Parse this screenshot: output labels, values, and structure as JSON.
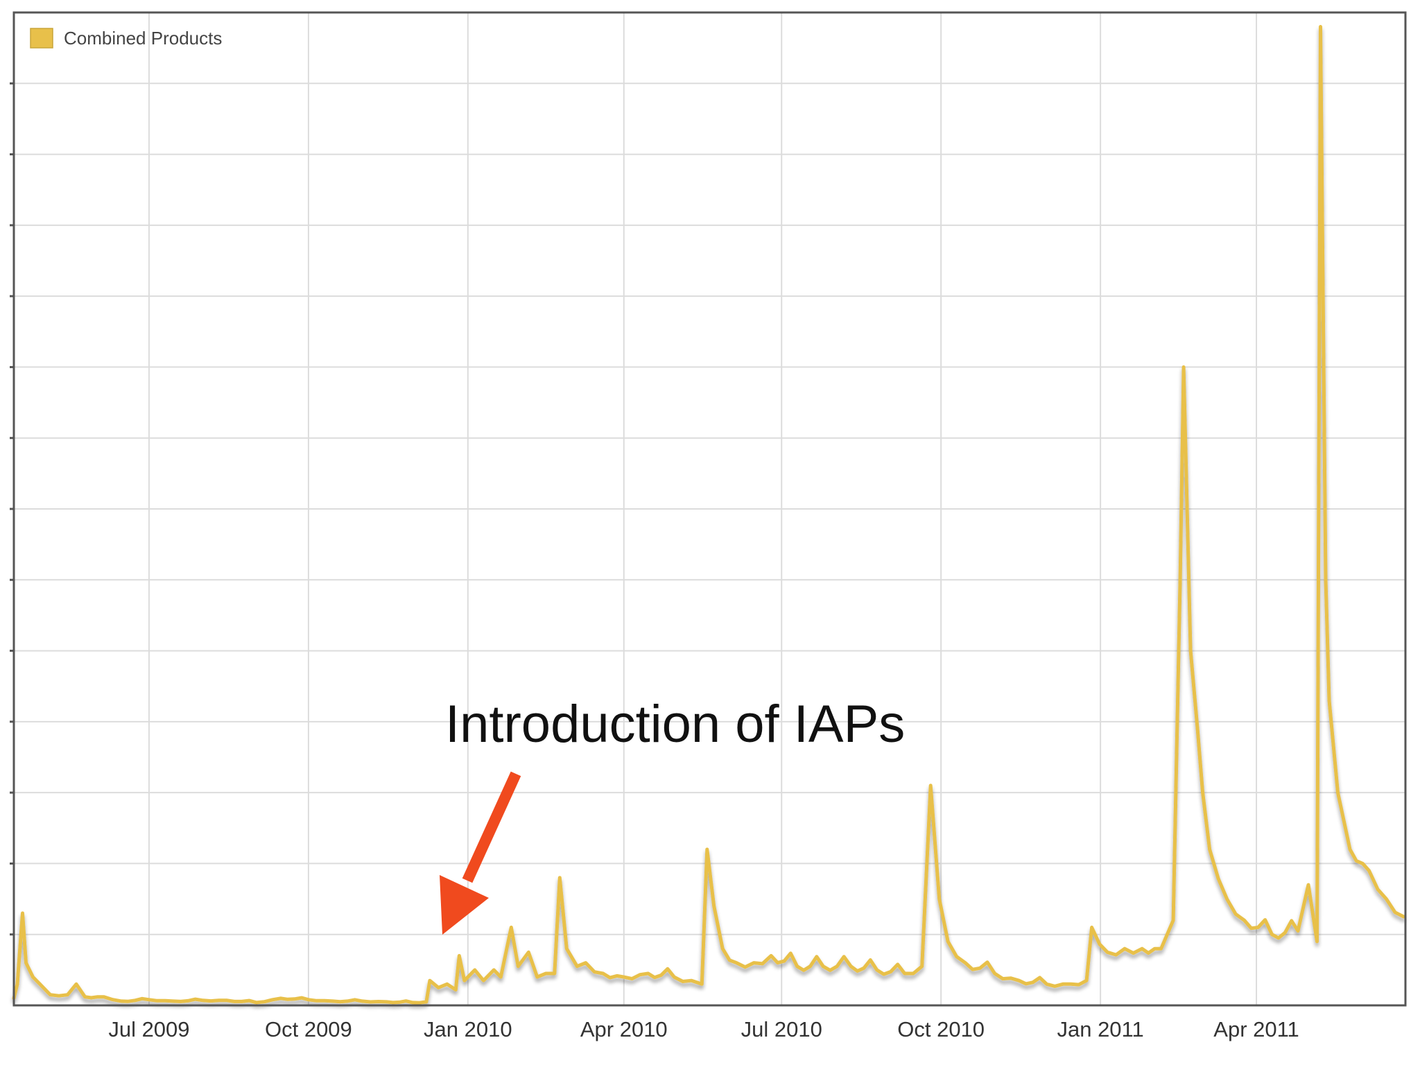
{
  "chart_data": {
    "type": "line",
    "title": "",
    "xlabel": "",
    "ylabel": "",
    "grid": true,
    "legend_position": "top-left",
    "x_tick_labels": [
      "Jul 2009",
      "Oct 2009",
      "Jan 2010",
      "Apr 2010",
      "Jul 2010",
      "Oct 2010",
      "Jan 2011",
      "Apr 2011"
    ],
    "y_tick_labels": [],
    "ylim": [
      0,
      14
    ],
    "x_start": "2009-04-14",
    "x_end": "2011-06-26",
    "series": [
      {
        "name": "Combined Products",
        "color": "#e8c04a",
        "points": [
          [
            "2009-04-14",
            0.1
          ],
          [
            "2009-04-16",
            0.3
          ],
          [
            "2009-04-19",
            1.3
          ],
          [
            "2009-04-21",
            0.6
          ],
          [
            "2009-04-25",
            0.4
          ],
          [
            "2009-04-29",
            0.3
          ],
          [
            "2009-05-05",
            0.15
          ],
          [
            "2009-05-15",
            0.15
          ],
          [
            "2009-05-20",
            0.3
          ],
          [
            "2009-05-25",
            0.12
          ],
          [
            "2009-06-05",
            0.12
          ],
          [
            "2009-06-15",
            0.06
          ],
          [
            "2009-07-01",
            0.08
          ],
          [
            "2009-07-15",
            0.06
          ],
          [
            "2009-08-01",
            0.07
          ],
          [
            "2009-08-15",
            0.07
          ],
          [
            "2009-09-01",
            0.04
          ],
          [
            "2009-09-15",
            0.1
          ],
          [
            "2009-10-01",
            0.08
          ],
          [
            "2009-10-15",
            0.06
          ],
          [
            "2009-11-01",
            0.06
          ],
          [
            "2009-11-15",
            0.05
          ],
          [
            "2009-11-30",
            0.04
          ],
          [
            "2009-12-08",
            0.05
          ],
          [
            "2009-12-10",
            0.35
          ],
          [
            "2009-12-15",
            0.25
          ],
          [
            "2009-12-20",
            0.3
          ],
          [
            "2009-12-25",
            0.22
          ],
          [
            "2009-12-27",
            0.7
          ],
          [
            "2009-12-30",
            0.35
          ],
          [
            "2010-01-05",
            0.5
          ],
          [
            "2010-01-10",
            0.35
          ],
          [
            "2010-01-16",
            0.5
          ],
          [
            "2010-01-20",
            0.4
          ],
          [
            "2010-01-26",
            1.1
          ],
          [
            "2010-01-30",
            0.55
          ],
          [
            "2010-02-05",
            0.75
          ],
          [
            "2010-02-10",
            0.4
          ],
          [
            "2010-02-15",
            0.45
          ],
          [
            "2010-02-20",
            0.45
          ],
          [
            "2010-02-23",
            1.8
          ],
          [
            "2010-02-27",
            0.8
          ],
          [
            "2010-03-05",
            0.55
          ],
          [
            "2010-03-10",
            0.6
          ],
          [
            "2010-03-20",
            0.45
          ],
          [
            "2010-04-01",
            0.4
          ],
          [
            "2010-04-15",
            0.45
          ],
          [
            "2010-04-30",
            0.4
          ],
          [
            "2010-05-10",
            0.35
          ],
          [
            "2010-05-16",
            0.3
          ],
          [
            "2010-05-19",
            2.2
          ],
          [
            "2010-05-23",
            1.4
          ],
          [
            "2010-05-28",
            0.8
          ],
          [
            "2010-06-05",
            0.6
          ],
          [
            "2010-06-15",
            0.6
          ],
          [
            "2010-06-25",
            0.7
          ],
          [
            "2010-07-10",
            0.55
          ],
          [
            "2010-07-25",
            0.55
          ],
          [
            "2010-08-10",
            0.55
          ],
          [
            "2010-08-25",
            0.5
          ],
          [
            "2010-09-10",
            0.45
          ],
          [
            "2010-09-20",
            0.55
          ],
          [
            "2010-09-25",
            3.1
          ],
          [
            "2010-09-30",
            1.5
          ],
          [
            "2010-10-05",
            0.9
          ],
          [
            "2010-10-15",
            0.6
          ],
          [
            "2010-11-01",
            0.45
          ],
          [
            "2010-11-15",
            0.35
          ],
          [
            "2010-12-01",
            0.3
          ],
          [
            "2010-12-15",
            0.3
          ],
          [
            "2010-12-24",
            0.35
          ],
          [
            "2010-12-27",
            1.1
          ],
          [
            "2011-01-05",
            0.75
          ],
          [
            "2011-01-15",
            0.8
          ],
          [
            "2011-01-25",
            0.8
          ],
          [
            "2011-02-05",
            0.8
          ],
          [
            "2011-02-12",
            1.2
          ],
          [
            "2011-02-16",
            6.0
          ],
          [
            "2011-02-18",
            9.0
          ],
          [
            "2011-02-22",
            5.0
          ],
          [
            "2011-02-26",
            3.9
          ],
          [
            "2011-03-01",
            3.0
          ],
          [
            "2011-03-05",
            2.2
          ],
          [
            "2011-03-15",
            1.5
          ],
          [
            "2011-03-25",
            1.2
          ],
          [
            "2011-04-10",
            1.0
          ],
          [
            "2011-04-25",
            1.05
          ],
          [
            "2011-05-01",
            1.7
          ],
          [
            "2011-05-06",
            0.9
          ],
          [
            "2011-05-08",
            13.8
          ],
          [
            "2011-05-11",
            6.0
          ],
          [
            "2011-05-13",
            4.3
          ],
          [
            "2011-05-18",
            3.0
          ],
          [
            "2011-05-25",
            2.2
          ],
          [
            "2011-06-05",
            1.9
          ],
          [
            "2011-06-15",
            1.5
          ],
          [
            "2011-06-25",
            1.25
          ]
        ]
      }
    ],
    "annotations": [
      {
        "text": "Introduction of IAPs",
        "date": "2009-12-10",
        "arrow_color": "#f04a1e"
      }
    ]
  }
}
